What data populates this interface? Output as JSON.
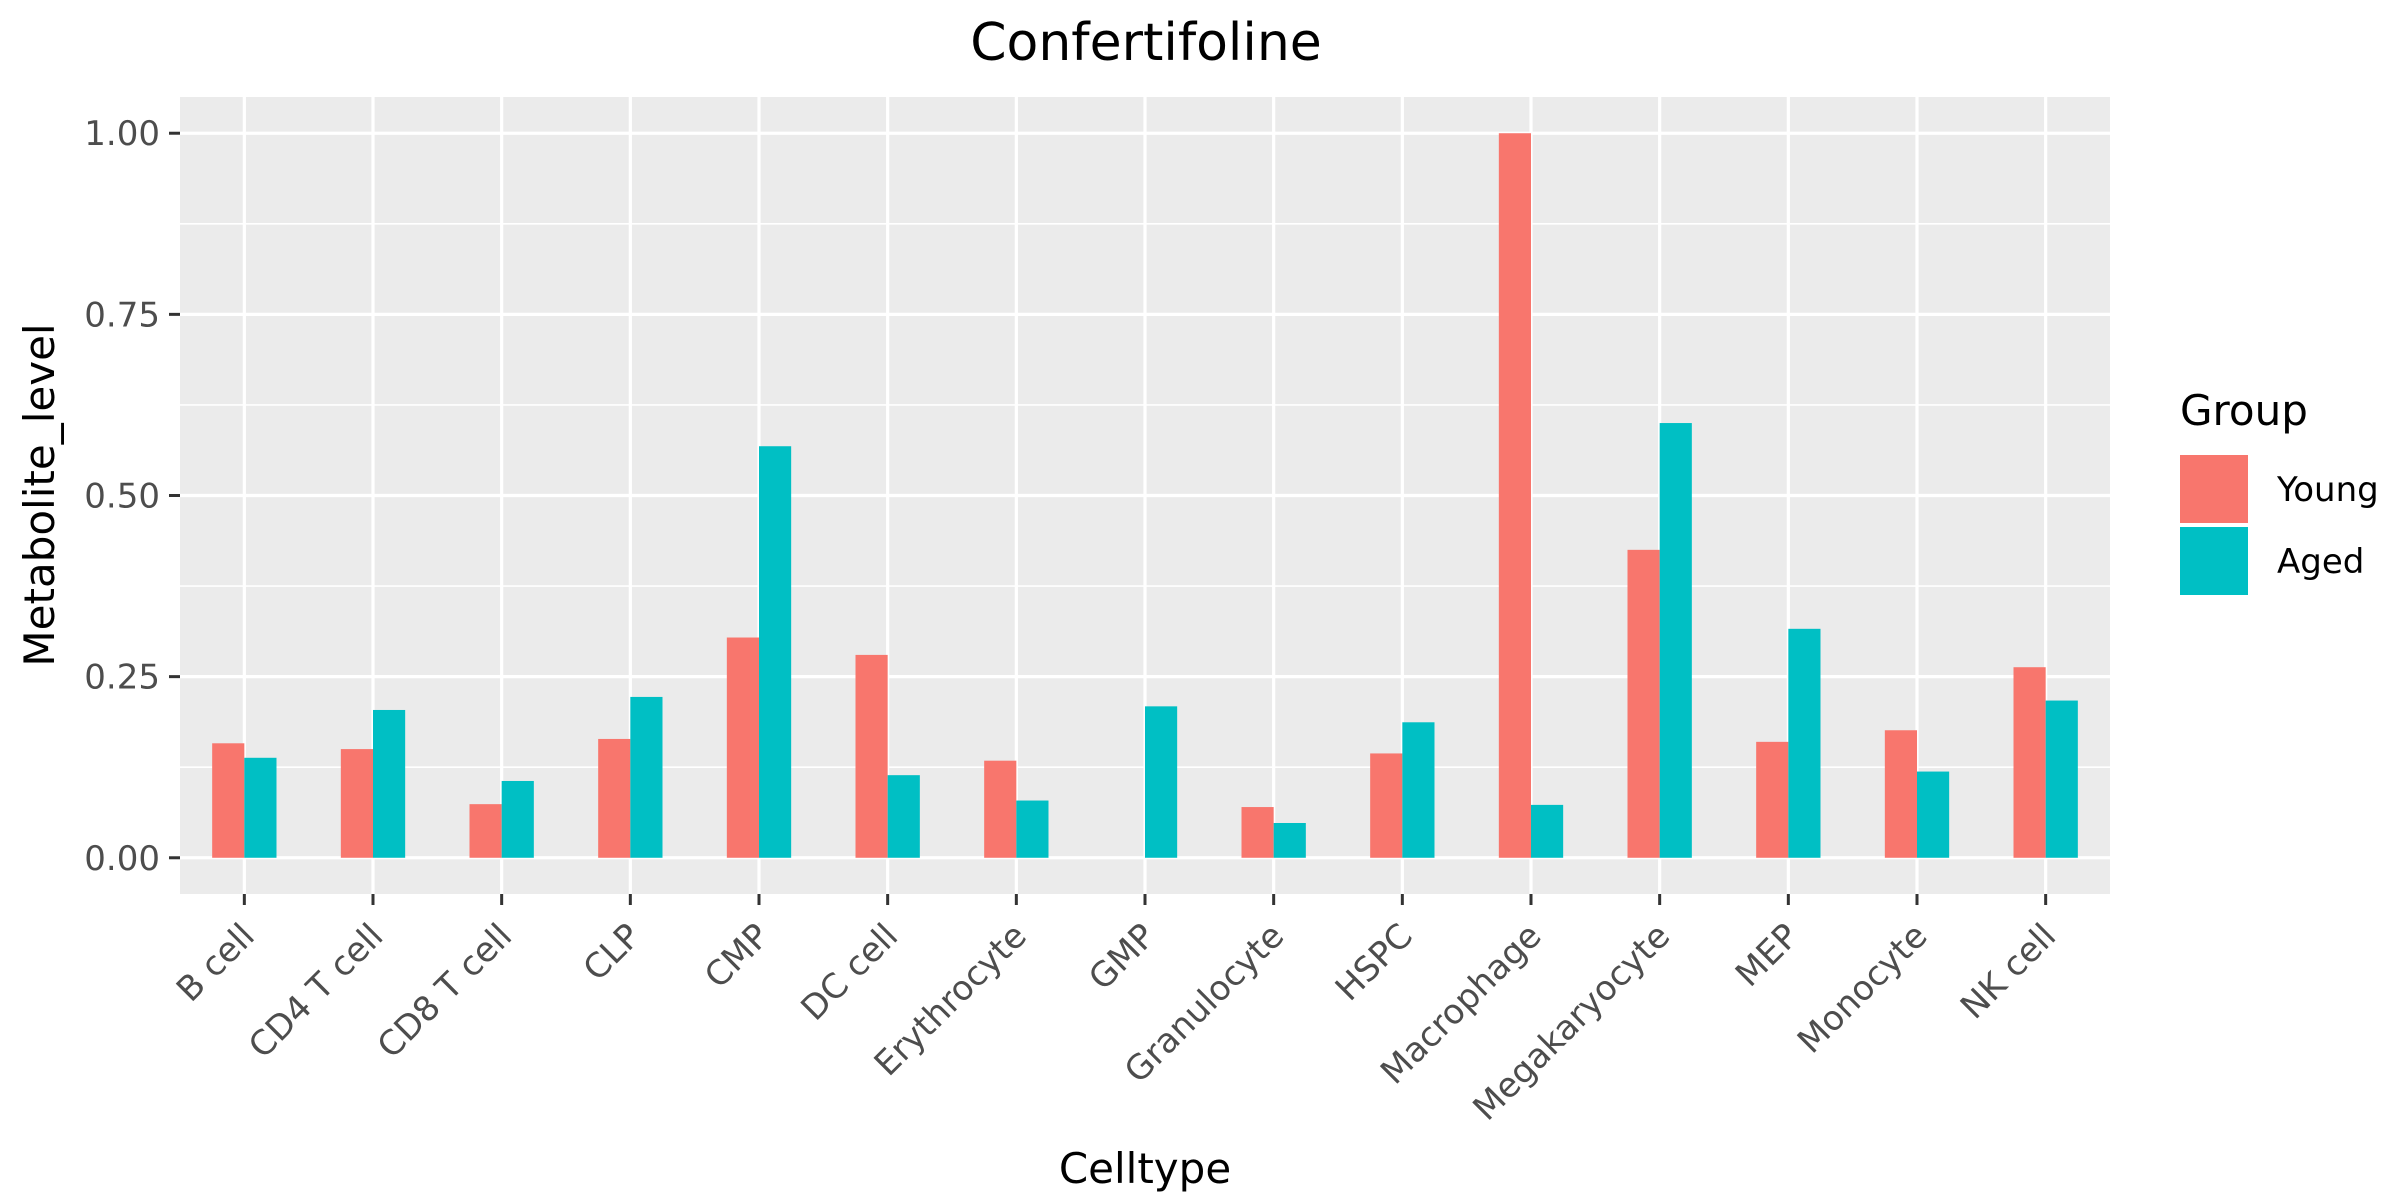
{
  "chart_data": {
    "type": "bar",
    "title": "Confertifoline",
    "xlabel": "Celltype",
    "ylabel": "Metabolite_level",
    "categories": [
      "B cell",
      "CD4 T cell",
      "CD8 T cell",
      "CLP",
      "CMP",
      "DC cell",
      "Erythrocyte",
      "GMP",
      "Granulocyte",
      "HSPC",
      "Macrophage",
      "Megakaryocyte",
      "MEP",
      "Monocyte",
      "NK cell"
    ],
    "series": [
      {
        "name": "Young",
        "color": "#F8766D",
        "values": [
          0.158,
          0.15,
          0.074,
          0.164,
          0.304,
          0.28,
          0.134,
          null,
          0.07,
          0.144,
          1.0,
          0.425,
          0.16,
          0.176,
          0.263
        ]
      },
      {
        "name": "Aged",
        "color": "#00BFC4",
        "values": [
          0.138,
          0.204,
          0.106,
          0.222,
          0.568,
          0.114,
          0.079,
          0.209,
          0.048,
          0.187,
          0.073,
          0.6,
          0.316,
          0.119,
          0.217
        ]
      }
    ],
    "ylim": [
      -0.05,
      1.05
    ],
    "yticks": [
      0.0,
      0.25,
      0.5,
      0.75,
      1.0
    ],
    "ytick_labels": [
      "0.00",
      "0.25",
      "0.50",
      "0.75",
      "1.00"
    ],
    "legend": {
      "title": "Group",
      "position": "right"
    },
    "grid": true,
    "colors": {
      "panel": "#EBEBEB",
      "grid": "#FFFFFF",
      "tick": "#333333",
      "tick_text": "#4D4D4D"
    }
  }
}
